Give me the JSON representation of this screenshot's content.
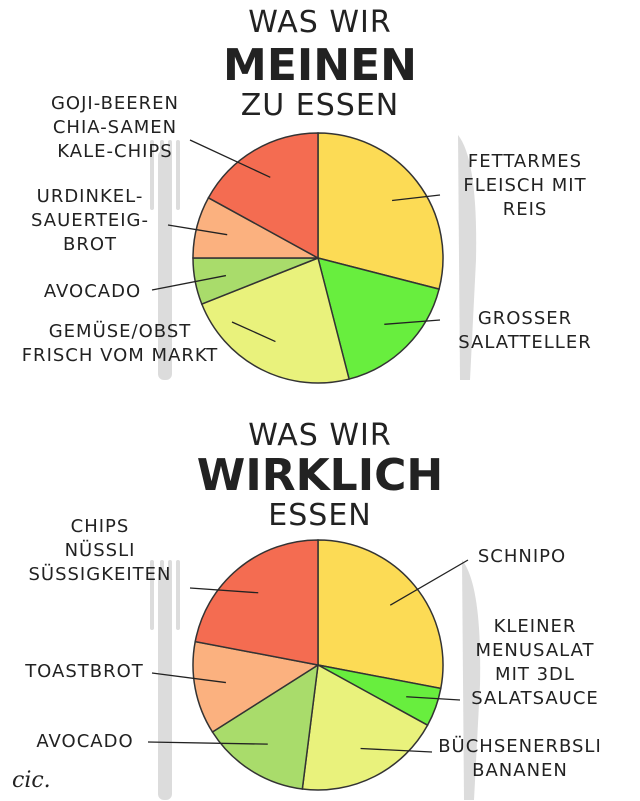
{
  "chart_data": [
    {
      "type": "pie",
      "title": [
        "WAS WIR",
        "MEINEN",
        "ZU ESSEN"
      ],
      "categories": [
        "FETTARMES\nFLEISCH MIT\nREIS",
        "GROSSER\nSALATTELLER",
        "GEMÜSE/OBST\nFRISCH VOM MARKT",
        "AVOCADO",
        "URDINKEL-\nSAUERTEIG-\nBROT",
        "GOJI-BEEREN\nCHIA-SAMEN\nKALE-CHIPS"
      ],
      "values": [
        29,
        17,
        23,
        6,
        8,
        17
      ],
      "colors": [
        "#fcdb55",
        "#68ee3e",
        "#e9f27c",
        "#a9dc6b",
        "#fbb17f",
        "#f46c51"
      ]
    },
    {
      "type": "pie",
      "title": [
        "WAS WIR",
        "WIRKLICH",
        "ESSEN"
      ],
      "categories": [
        "SCHNIPO",
        "KLEINER\nMENUSALAT\nMIT 3DL\nSALATSAUCE",
        "BÜCHSENERBSLI\nBANANEN",
        "AVOCADO",
        "TOASTBROT",
        "CHIPS\nNÜSSLI\nSÜSSIGKEITEN"
      ],
      "values": [
        28,
        5,
        19,
        14,
        12,
        22
      ],
      "colors": [
        "#fcdb55",
        "#68ee3e",
        "#e9f27c",
        "#a9dc6b",
        "#fbb17f",
        "#f46c51"
      ]
    }
  ],
  "signature": "cic."
}
